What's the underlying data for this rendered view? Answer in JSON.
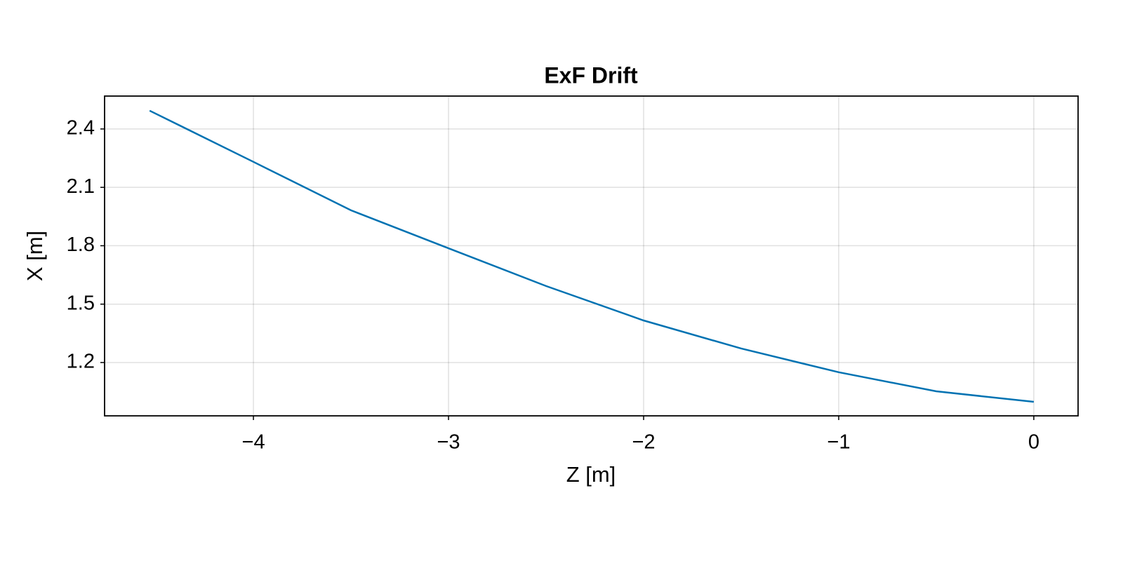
{
  "chart_data": {
    "type": "line",
    "title": "ExF Drift",
    "x_label": "Z [m]",
    "y_label": "X [m]",
    "x": [
      -4.532,
      -4,
      -3.5,
      -3,
      -2.5,
      -2,
      -1.5,
      -1,
      -0.5,
      0
    ],
    "series": [
      {
        "color": "#0072b2",
        "values": [
          2.494,
          2.231,
          1.982,
          1.787,
          1.593,
          1.416,
          1.272,
          1.15,
          1.052,
          0.998
        ]
      }
    ],
    "xlim": [
      -4.763,
      0.227
    ],
    "ylim": [
      0.926,
      2.569
    ],
    "xticks": [
      {
        "value": -4,
        "label": "−4"
      },
      {
        "value": -3,
        "label": "−3"
      },
      {
        "value": -2,
        "label": "−2"
      },
      {
        "value": -1,
        "label": "−1"
      },
      0
    ],
    "yticks": [
      1.2,
      1.5,
      1.8,
      2.1,
      2.4
    ],
    "grid": true
  }
}
